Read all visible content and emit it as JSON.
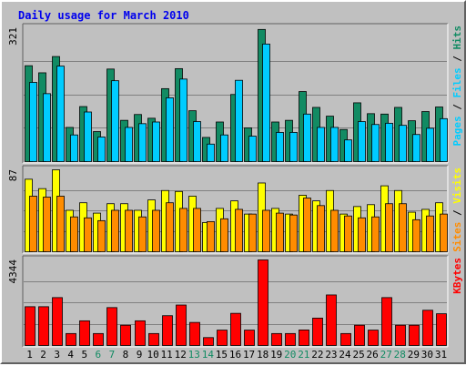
{
  "chart_data": {
    "type": "bar",
    "title": "Daily usage for March 2010",
    "x": [
      "1",
      "2",
      "3",
      "4",
      "5",
      "6",
      "7",
      "8",
      "9",
      "10",
      "11",
      "12",
      "13",
      "14",
      "15",
      "16",
      "17",
      "18",
      "19",
      "20",
      "21",
      "22",
      "23",
      "24",
      "25",
      "26",
      "27",
      "28",
      "29",
      "30",
      "31"
    ],
    "weekend_days": [
      "6",
      "7",
      "13",
      "14",
      "20",
      "21",
      "27",
      "28"
    ],
    "panels": [
      {
        "id": "top",
        "max_label": "321",
        "ymax": 321,
        "series": [
          {
            "name": "Hits",
            "color": "#128b63",
            "values": [
              230,
              213,
              252,
              82,
              132,
              72,
              222,
              99,
              113,
              104,
              175,
              223,
              122,
              58,
              95,
              161,
              81,
              317,
              95,
              99,
              168,
              130,
              109,
              77,
              141,
              115,
              114,
              130,
              98,
              120,
              131
            ]
          },
          {
            "name": "Files",
            "color": "#00ccff",
            "values": [
              190,
              163,
              229,
              64,
              119,
              59,
              194,
              82,
              91,
              95,
              153,
              198,
              96,
              42,
              64,
              195,
              61,
              282,
              70,
              70,
              114,
              82,
              82,
              52,
              96,
              89,
              92,
              87,
              65,
              80,
              103
            ]
          }
        ],
        "right_label": [
          {
            "text": "Pages",
            "color": "#00ccff"
          },
          {
            "text": " / ",
            "color": "#000000"
          },
          {
            "text": "Files",
            "color": "#00ccff"
          },
          {
            "text": " / ",
            "color": "#000000"
          },
          {
            "text": "Hits",
            "color": "#128b63"
          }
        ]
      },
      {
        "id": "mid",
        "max_label": "87",
        "ymax": 87,
        "series": [
          {
            "name": "Visits",
            "color": "#ffff00",
            "values": [
              77,
              67,
              87,
              44,
              52,
              41,
              51,
              51,
              44,
              55,
              65,
              64,
              59,
              31,
              46,
              54,
              40,
              73,
              46,
              40,
              60,
              54,
              65,
              40,
              48,
              50,
              70,
              65,
              42,
              45,
              52
            ]
          },
          {
            "name": "Sites",
            "color": "#ff8c00",
            "values": [
              59,
              58,
              59,
              37,
              36,
              33,
              44,
              44,
              37,
              44,
              52,
              46,
              46,
              32,
              35,
              45,
              40,
              44,
              41,
              39,
              57,
              49,
              44,
              38,
              36,
              37,
              51,
              51,
              34,
              38,
              40
            ]
          }
        ],
        "right_label": [
          {
            "text": "Sites",
            "color": "#ff8c00"
          },
          {
            "text": " / ",
            "color": "#000000"
          },
          {
            "text": "Visits",
            "color": "#ffff00"
          }
        ]
      },
      {
        "id": "bot",
        "max_label": "4344",
        "ymax": 4344,
        "series": [
          {
            "name": "KBytes",
            "color": "#ff0000",
            "values": [
              1970,
              1970,
              2432,
              608,
              1254,
              608,
              1925,
              1030,
              1254,
              608,
              1514,
              2055,
              1172,
              402,
              782,
              1633,
              782,
              4344,
              608,
              608,
              790,
              1392,
              2567,
              608,
              1030,
              782,
              2432,
              1030,
              1030,
              1790,
              1612
            ]
          }
        ],
        "right_label": [
          {
            "text": "KBytes",
            "color": "#ff0000"
          }
        ]
      }
    ]
  }
}
